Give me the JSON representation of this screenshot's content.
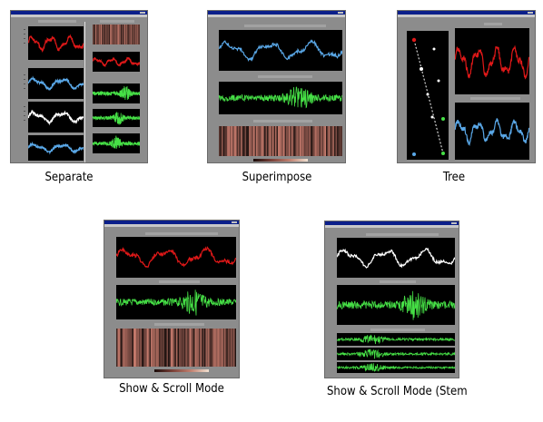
{
  "colors": {
    "window_bg": "#8c8c8c",
    "title_bar": "#0b1f8a",
    "plot_bg": "#000000",
    "trace_red": "#e01818",
    "trace_blue": "#5aa8e8",
    "trace_green": "#46e046",
    "trace_white": "#ffffff",
    "heatmap_tone": "#8a5048"
  },
  "screenshots": [
    {
      "id": "separate",
      "caption": "Separate"
    },
    {
      "id": "superimpose",
      "caption": "Superimpose"
    },
    {
      "id": "tree",
      "caption": "Tree"
    },
    {
      "id": "show-scroll",
      "caption": "Show & Scroll Mode"
    },
    {
      "id": "show-scroll-stem",
      "caption": "Show & Scroll Mode (Stem"
    }
  ]
}
